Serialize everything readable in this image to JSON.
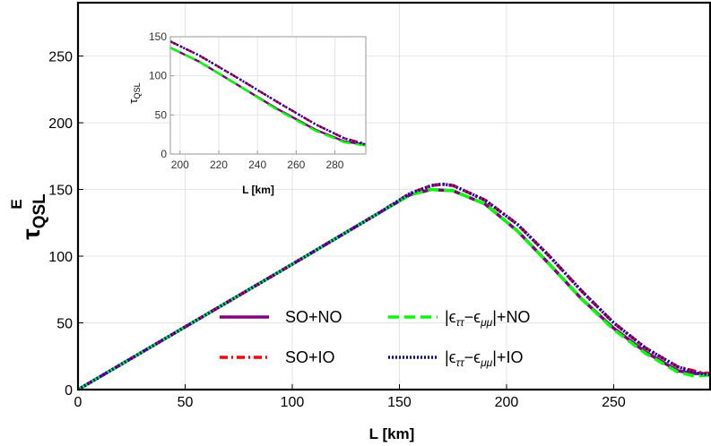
{
  "chart_data": [
    {
      "type": "line",
      "role": "main",
      "xlabel": "L [km]",
      "ylabel": {
        "base": "τ",
        "sup": "E",
        "sub": "QSL"
      },
      "xlim": [
        0,
        295
      ],
      "ylim": [
        0,
        290
      ],
      "xticks": [
        0,
        50,
        100,
        150,
        200,
        250
      ],
      "yticks": [
        0,
        50,
        100,
        150,
        200,
        250
      ],
      "grid": true,
      "legend_position": "lower-center",
      "series": [
        {
          "name": "SO+NO",
          "color": "#800080",
          "style": "solid",
          "x": [
            0,
            50,
            100,
            140,
            155,
            165,
            175,
            190,
            205,
            220,
            235,
            250,
            265,
            280,
            288,
            295
          ],
          "y": [
            0,
            47,
            94,
            132,
            146,
            150,
            149,
            139,
            119,
            94,
            68,
            46,
            28,
            14,
            12,
            12
          ]
        },
        {
          "name": "SO+IO",
          "color": "#ff0000",
          "style": "dashdot",
          "x": [
            0,
            50,
            100,
            140,
            155,
            165,
            170,
            175,
            190,
            205,
            220,
            235,
            250,
            265,
            280,
            290,
            295
          ],
          "y": [
            0,
            47,
            94,
            132,
            147,
            153,
            154,
            153,
            142,
            124,
            100,
            74,
            50,
            31,
            17,
            13,
            12
          ]
        },
        {
          "name": "|ϵττ−ϵμμ|+NO",
          "color": "#00ff00",
          "style": "dashed",
          "x": [
            0,
            50,
            100,
            140,
            155,
            165,
            175,
            190,
            205,
            220,
            235,
            250,
            265,
            280,
            288,
            295
          ],
          "y": [
            0,
            47,
            94,
            132,
            146,
            150,
            149,
            139,
            119,
            94,
            68,
            45,
            27,
            13,
            10,
            11
          ]
        },
        {
          "name": "|ϵττ−ϵμμ|+IO",
          "color": "#0000cc",
          "style": "dotted",
          "x": [
            0,
            50,
            100,
            140,
            155,
            165,
            170,
            175,
            190,
            205,
            220,
            235,
            250,
            265,
            280,
            290,
            295
          ],
          "y": [
            0,
            47,
            94,
            132,
            147,
            153,
            154,
            153,
            142,
            124,
            100,
            74,
            50,
            31,
            17,
            12,
            11
          ]
        }
      ],
      "legend_labels": {
        "so_no": "SO+NO",
        "so_io": "SO+IO",
        "eps_no_prefix": "|ϵ",
        "eps_no_sub1": "ττ",
        "eps_no_mid": "−ϵ",
        "eps_no_sub2": "μμ",
        "eps_no_suffix": "|+NO",
        "eps_io_prefix": "|ϵ",
        "eps_io_sub1": "ττ",
        "eps_io_mid": "−ϵ",
        "eps_io_sub2": "μμ",
        "eps_io_suffix": "|+IO"
      }
    },
    {
      "type": "line",
      "role": "inset",
      "xlabel": "L [km]",
      "ylabel": {
        "base": "τ",
        "sub": "QSL"
      },
      "xlim": [
        195,
        296
      ],
      "ylim": [
        0,
        150
      ],
      "xticks": [
        200,
        220,
        240,
        260,
        280
      ],
      "yticks": [
        0,
        50,
        100,
        150
      ],
      "grid": true,
      "series": [
        {
          "name": "SO+NO",
          "color": "#800080",
          "style": "solid",
          "x": [
            195,
            210,
            230,
            250,
            270,
            285,
            296
          ],
          "y": [
            136,
            118,
            88,
            58,
            31,
            16,
            12
          ]
        },
        {
          "name": "SO+IO",
          "color": "#ff0000",
          "style": "dashdot",
          "x": [
            195,
            210,
            230,
            250,
            270,
            285,
            296
          ],
          "y": [
            144,
            126,
            97,
            67,
            38,
            20,
            13
          ]
        },
        {
          "name": "|ϵττ−ϵμμ|+NO",
          "color": "#00ff00",
          "style": "dashed",
          "x": [
            195,
            210,
            230,
            250,
            270,
            285,
            296
          ],
          "y": [
            136,
            118,
            88,
            57,
            30,
            15,
            11
          ]
        },
        {
          "name": "|ϵττ−ϵμμ|+IO",
          "color": "#0000cc",
          "style": "dotted",
          "x": [
            195,
            210,
            230,
            250,
            270,
            285,
            296
          ],
          "y": [
            144,
            126,
            97,
            67,
            38,
            20,
            12
          ]
        }
      ]
    }
  ]
}
